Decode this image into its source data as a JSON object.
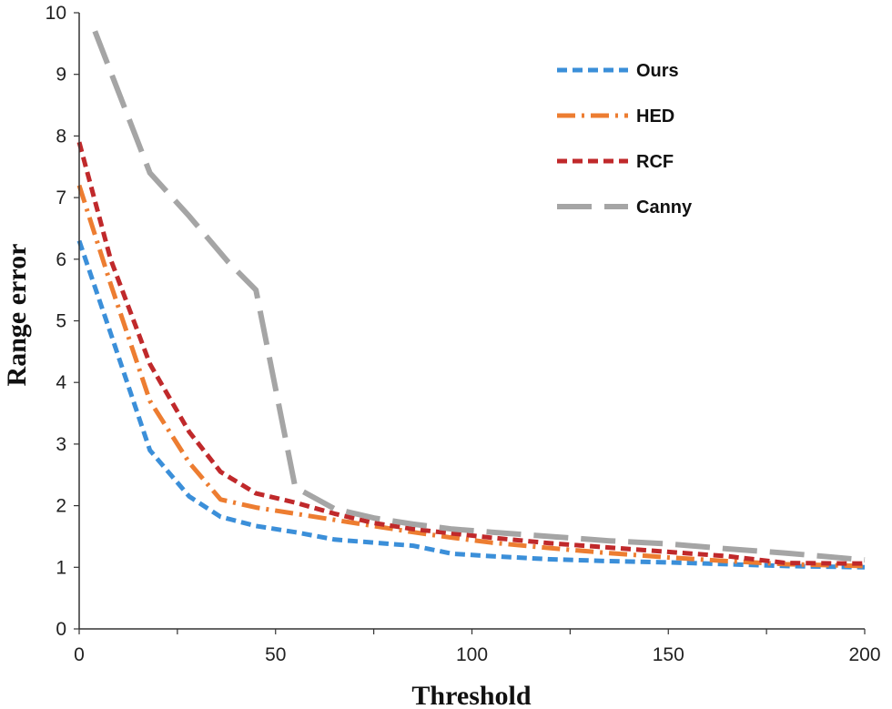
{
  "chart_data": {
    "type": "line",
    "title": "",
    "xlabel": "Threshold",
    "ylabel": "Range error",
    "xlim": [
      0,
      200
    ],
    "ylim": [
      0,
      10
    ],
    "x_ticks": [
      "0",
      "50",
      "100",
      "150",
      "200"
    ],
    "y_ticks": [
      "0",
      "1",
      "2",
      "3",
      "4",
      "5",
      "6",
      "7",
      "8",
      "9",
      "10"
    ],
    "grid": false,
    "legend_position": "top-right",
    "series": [
      {
        "name": "Ours",
        "color": "#3b8fd9",
        "dash": "dash",
        "x": [
          0,
          8,
          18,
          28,
          36,
          45,
          55,
          65,
          75,
          85,
          95,
          105,
          120,
          135,
          150,
          165,
          180,
          200
        ],
        "y": [
          6.3,
          4.8,
          2.9,
          2.15,
          1.82,
          1.67,
          1.57,
          1.45,
          1.4,
          1.35,
          1.22,
          1.18,
          1.13,
          1.1,
          1.08,
          1.05,
          1.02,
          1.0
        ]
      },
      {
        "name": "HED",
        "color": "#ed7d31",
        "dash": "dashdot",
        "x": [
          0,
          8,
          18,
          28,
          36,
          45,
          55,
          65,
          75,
          85,
          95,
          105,
          120,
          135,
          150,
          165,
          180,
          200
        ],
        "y": [
          7.2,
          5.6,
          3.7,
          2.7,
          2.1,
          1.97,
          1.87,
          1.77,
          1.67,
          1.57,
          1.48,
          1.4,
          1.31,
          1.23,
          1.16,
          1.1,
          1.05,
          1.02
        ]
      },
      {
        "name": "RCF",
        "color": "#c0292b",
        "dash": "dash",
        "x": [
          0,
          8,
          18,
          28,
          36,
          45,
          55,
          65,
          75,
          85,
          95,
          105,
          120,
          135,
          150,
          165,
          180,
          200
        ],
        "y": [
          7.9,
          6.0,
          4.3,
          3.2,
          2.55,
          2.2,
          2.05,
          1.87,
          1.72,
          1.62,
          1.55,
          1.48,
          1.39,
          1.32,
          1.25,
          1.18,
          1.07,
          1.06
        ]
      },
      {
        "name": "Canny",
        "color": "#a5a5a5",
        "dash": "longdash",
        "x": [
          4,
          18,
          28,
          38,
          45,
          55,
          65,
          75,
          85,
          95,
          105,
          120,
          135,
          150,
          165,
          180,
          200
        ],
        "y": [
          9.7,
          7.4,
          6.7,
          5.95,
          5.5,
          2.3,
          1.95,
          1.8,
          1.7,
          1.62,
          1.57,
          1.5,
          1.43,
          1.38,
          1.3,
          1.23,
          1.12
        ]
      }
    ]
  }
}
